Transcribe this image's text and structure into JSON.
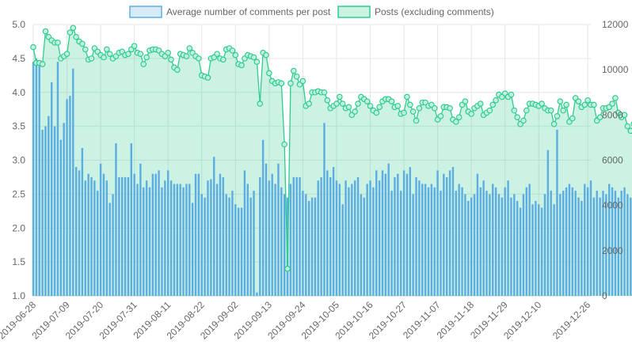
{
  "chart_data": {
    "type": "bar+line",
    "legend_position": "top",
    "grid": true,
    "legend": [
      {
        "label": "Average number of comments per post",
        "fill": "#d6eaf8",
        "stroke": "#5dade2"
      },
      {
        "label": "Posts (excluding comments)",
        "fill": "#c9f2e0",
        "stroke": "#2ecc8f"
      }
    ],
    "x_start": "2019-06-28",
    "x_end": "2019-12-27",
    "x_tick_labels": [
      "2019-06-28",
      "2019-07-09",
      "2019-07-20",
      "2019-07-31",
      "2019-08-11",
      "2019-08-22",
      "2019-09-02",
      "2019-09-13",
      "2019-09-24",
      "2019-10-05",
      "2019-10-16",
      "2019-10-27",
      "2019-11-07",
      "2019-11-18",
      "2019-11-29",
      "2019-12-10",
      "2019-12-26"
    ],
    "y_left": {
      "min": 1.0,
      "max": 5.0,
      "ticks": [
        "1.0",
        "1.5",
        "2.0",
        "2.5",
        "3.0",
        "3.5",
        "4.0",
        "4.5",
        "5.0"
      ]
    },
    "y_right": {
      "min": 0,
      "max": 12000,
      "ticks": [
        "0",
        "2000",
        "4000",
        "6000",
        "8000",
        "10000",
        "12000"
      ]
    },
    "series": [
      {
        "name": "Average number of comments per post",
        "type": "bar",
        "axis": "left",
        "values": [
          4.45,
          4.5,
          4.45,
          3.45,
          3.5,
          3.65,
          4.15,
          3.5,
          4.45,
          3.3,
          3.55,
          3.9,
          3.95,
          4.35,
          2.9,
          2.85,
          3.18,
          2.7,
          2.8,
          2.75,
          2.7,
          2.55,
          2.95,
          2.8,
          2.7,
          2.37,
          2.5,
          3.25,
          2.75,
          2.75,
          2.75,
          2.75,
          3.25,
          2.8,
          2.65,
          2.95,
          2.6,
          2.7,
          2.6,
          2.8,
          2.8,
          2.85,
          2.6,
          2.7,
          2.85,
          2.7,
          2.65,
          2.65,
          2.65,
          2.6,
          2.65,
          2.65,
          2.37,
          2.8,
          2.8,
          2.5,
          2.45,
          2.7,
          2.72,
          3.05,
          2.65,
          2.8,
          2.75,
          2.5,
          2.45,
          2.55,
          2.35,
          2.3,
          2.3,
          2.85,
          2.65,
          2.45,
          2.55,
          1.05,
          2.75,
          3.3,
          2.95,
          2.7,
          2.8,
          2.65,
          2.95,
          2.6,
          2.5,
          2.45,
          2.65,
          2.75,
          2.75,
          2.75,
          2.55,
          2.5,
          2.4,
          2.45,
          2.45,
          2.7,
          2.75,
          3.55,
          2.85,
          2.75,
          2.9,
          2.7,
          2.65,
          2.35,
          2.7,
          2.6,
          2.65,
          2.7,
          2.75,
          2.5,
          2.45,
          2.65,
          2.7,
          2.6,
          2.85,
          2.7,
          2.85,
          2.8,
          2.95,
          2.55,
          2.75,
          2.8,
          2.55,
          2.85,
          2.8,
          2.9,
          2.5,
          2.75,
          2.7,
          2.65,
          2.65,
          2.6,
          2.65,
          2.6,
          2.85,
          2.55,
          2.8,
          2.75,
          2.85,
          2.9,
          2.55,
          2.65,
          2.6,
          2.5,
          2.4,
          2.45,
          2.5,
          2.8,
          2.6,
          2.7,
          2.55,
          2.5,
          2.65,
          2.6,
          2.5,
          2.45,
          2.6,
          2.7,
          2.45,
          2.5,
          2.4,
          2.3,
          2.5,
          2.6,
          2.65,
          2.35,
          2.4,
          2.35,
          2.3,
          2.5,
          3.15,
          2.55,
          2.35,
          3.45,
          2.5,
          2.55,
          2.6,
          2.65,
          2.6,
          2.55,
          2.45,
          2.4,
          2.65,
          2.6,
          2.7,
          2.45,
          2.55,
          2.45,
          2.55,
          2.5,
          2.65,
          2.6,
          2.55,
          2.45,
          2.55,
          2.6,
          2.5,
          2.45,
          2.4,
          2.55,
          2.6,
          2.65,
          2.55
        ]
      },
      {
        "name": "Posts (excluding comments)",
        "type": "area-line",
        "axis": "right",
        "values": [
          11000,
          10300,
          10300,
          10250,
          11700,
          11450,
          11300,
          11200,
          11200,
          10500,
          10600,
          10700,
          11650,
          11850,
          11450,
          11250,
          11150,
          10900,
          10450,
          10500,
          10950,
          10800,
          10650,
          10550,
          10900,
          10700,
          10500,
          10600,
          10750,
          10800,
          10650,
          10700,
          10900,
          11050,
          10750,
          10700,
          10250,
          10550,
          10850,
          10900,
          10900,
          10850,
          10700,
          10600,
          10750,
          10450,
          10100,
          10000,
          10700,
          10650,
          10600,
          10950,
          10750,
          10600,
          10500,
          9750,
          9700,
          9650,
          10500,
          10550,
          10700,
          10500,
          10450,
          10900,
          10950,
          10850,
          10650,
          10250,
          10200,
          10500,
          10650,
          10600,
          10550,
          10350,
          8500,
          10750,
          10650,
          9850,
          9500,
          9400,
          9450,
          9400,
          6700,
          1200,
          9400,
          9950,
          9700,
          9350,
          9500,
          8400,
          8500,
          9000,
          9000,
          9050,
          9000,
          9000,
          8650,
          8300,
          8400,
          8500,
          8800,
          8500,
          8300,
          8350,
          8000,
          8150,
          8500,
          8800,
          8700,
          8600,
          8400,
          8200,
          8100,
          8350,
          8600,
          8700,
          8700,
          8600,
          8350,
          8400,
          8050,
          8100,
          8800,
          8450,
          8150,
          7750,
          8300,
          8550,
          8550,
          8400,
          8450,
          8300,
          7800,
          7950,
          8350,
          8350,
          8300,
          7800,
          7700,
          7900,
          8450,
          8600,
          8150,
          8050,
          8300,
          8400,
          8500,
          8000,
          8100,
          8200,
          8450,
          8650,
          8900,
          8800,
          8950,
          8800,
          8900,
          8200,
          7900,
          7600,
          7750,
          8200,
          8500,
          8500,
          8450,
          8400,
          8500,
          8300,
          8200,
          8200,
          7600,
          7950,
          8600,
          8200,
          8450,
          7700,
          7850,
          8750,
          8600,
          8350,
          8450,
          8650,
          8450,
          8450,
          7750,
          7900,
          8300,
          8300,
          8350,
          8500,
          8750,
          8100,
          7900,
          8000,
          7500,
          7300,
          7600,
          7450
        ]
      }
    ]
  }
}
